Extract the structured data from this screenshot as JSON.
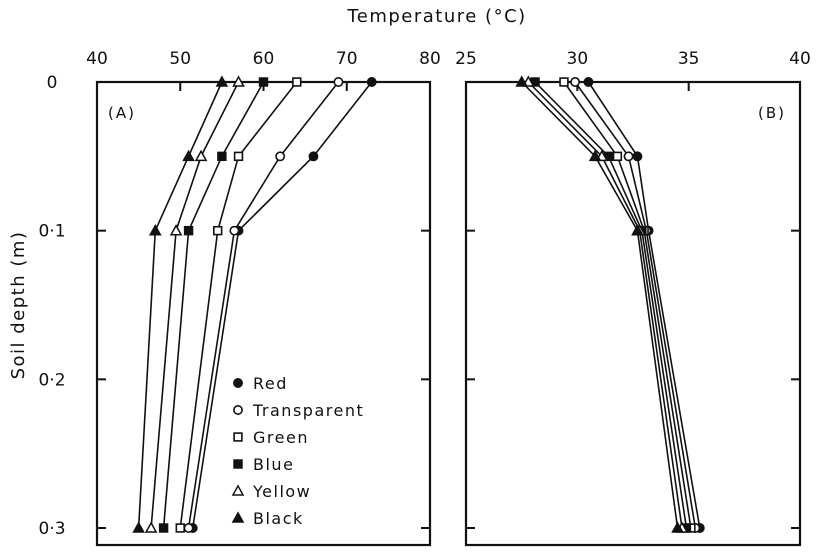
{
  "chart_data": {
    "type": "line",
    "title": "",
    "xlabel": "Temperature (°C)",
    "ylabel": "Soil depth (m)",
    "y": [
      0,
      0.05,
      0.1,
      0.3
    ],
    "y_ticks": [
      0,
      0.1,
      0.2,
      0.3
    ],
    "y_tick_labels": [
      "0",
      "0·1",
      "0·2",
      "0·3"
    ],
    "legend": {
      "position": "lower-left of panel A",
      "entries": [
        {
          "name": "Red",
          "marker": "filled-circle"
        },
        {
          "name": "Transparent",
          "marker": "open-circle"
        },
        {
          "name": "Green",
          "marker": "open-square"
        },
        {
          "name": "Blue",
          "marker": "filled-square"
        },
        {
          "name": "Yellow",
          "marker": "open-triangle"
        },
        {
          "name": "Black",
          "marker": "filled-triangle"
        }
      ]
    },
    "panels": [
      {
        "label": "(A)",
        "xlim": [
          40,
          80
        ],
        "x_ticks": [
          40,
          50,
          60,
          70,
          80
        ],
        "series": [
          {
            "name": "Red",
            "x": [
              73,
              66,
              57,
              51.5
            ]
          },
          {
            "name": "Transparent",
            "x": [
              69,
              62,
              56.5,
              51
            ]
          },
          {
            "name": "Green",
            "x": [
              64,
              57,
              54.5,
              50
            ]
          },
          {
            "name": "Blue",
            "x": [
              60,
              55,
              51,
              48
            ]
          },
          {
            "name": "Yellow",
            "x": [
              57,
              52.5,
              49.5,
              46.5
            ]
          },
          {
            "name": "Black",
            "x": [
              55,
              51,
              47,
              45
            ]
          }
        ]
      },
      {
        "label": "(B)",
        "xlim": [
          25,
          40
        ],
        "x_ticks": [
          25,
          30,
          35,
          40
        ],
        "series": [
          {
            "name": "Red",
            "x": [
              30.5,
              32.7,
              33.2,
              35.5
            ]
          },
          {
            "name": "Transparent",
            "x": [
              29.9,
              32.3,
              33.1,
              35.3
            ]
          },
          {
            "name": "Green",
            "x": [
              29.4,
              31.8,
              33.0,
              35.1
            ]
          },
          {
            "name": "Blue",
            "x": [
              28.1,
              31.4,
              32.9,
              34.9
            ]
          },
          {
            "name": "Yellow",
            "x": [
              27.8,
              31.1,
              32.8,
              34.7
            ]
          },
          {
            "name": "Black",
            "x": [
              27.5,
              30.8,
              32.7,
              34.5
            ]
          }
        ]
      }
    ]
  }
}
